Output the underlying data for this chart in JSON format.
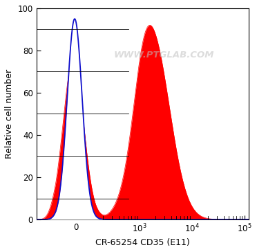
{
  "title": "",
  "xlabel": "CR-65254 CD35 (E11)",
  "ylabel": "Relative cell number",
  "watermark": "WWW.PTGLAB.COM",
  "ylim": [
    0,
    100
  ],
  "yticks": [
    0,
    20,
    40,
    60,
    80,
    100
  ],
  "red_color": "#FF0000",
  "blue_color": "#1010CC",
  "bg_color": "#FFFFFF",
  "plot_bg_color": "#FFFFFF",
  "border_color": "#000000",
  "watermark_color": "#C0C0C0",
  "watermark_alpha": 0.55,
  "fig_width": 3.72,
  "fig_height": 3.64,
  "dpi": 100,
  "label_fontsize": 9,
  "tick_fontsize": 8.5,
  "ylabel_fontsize": 9
}
